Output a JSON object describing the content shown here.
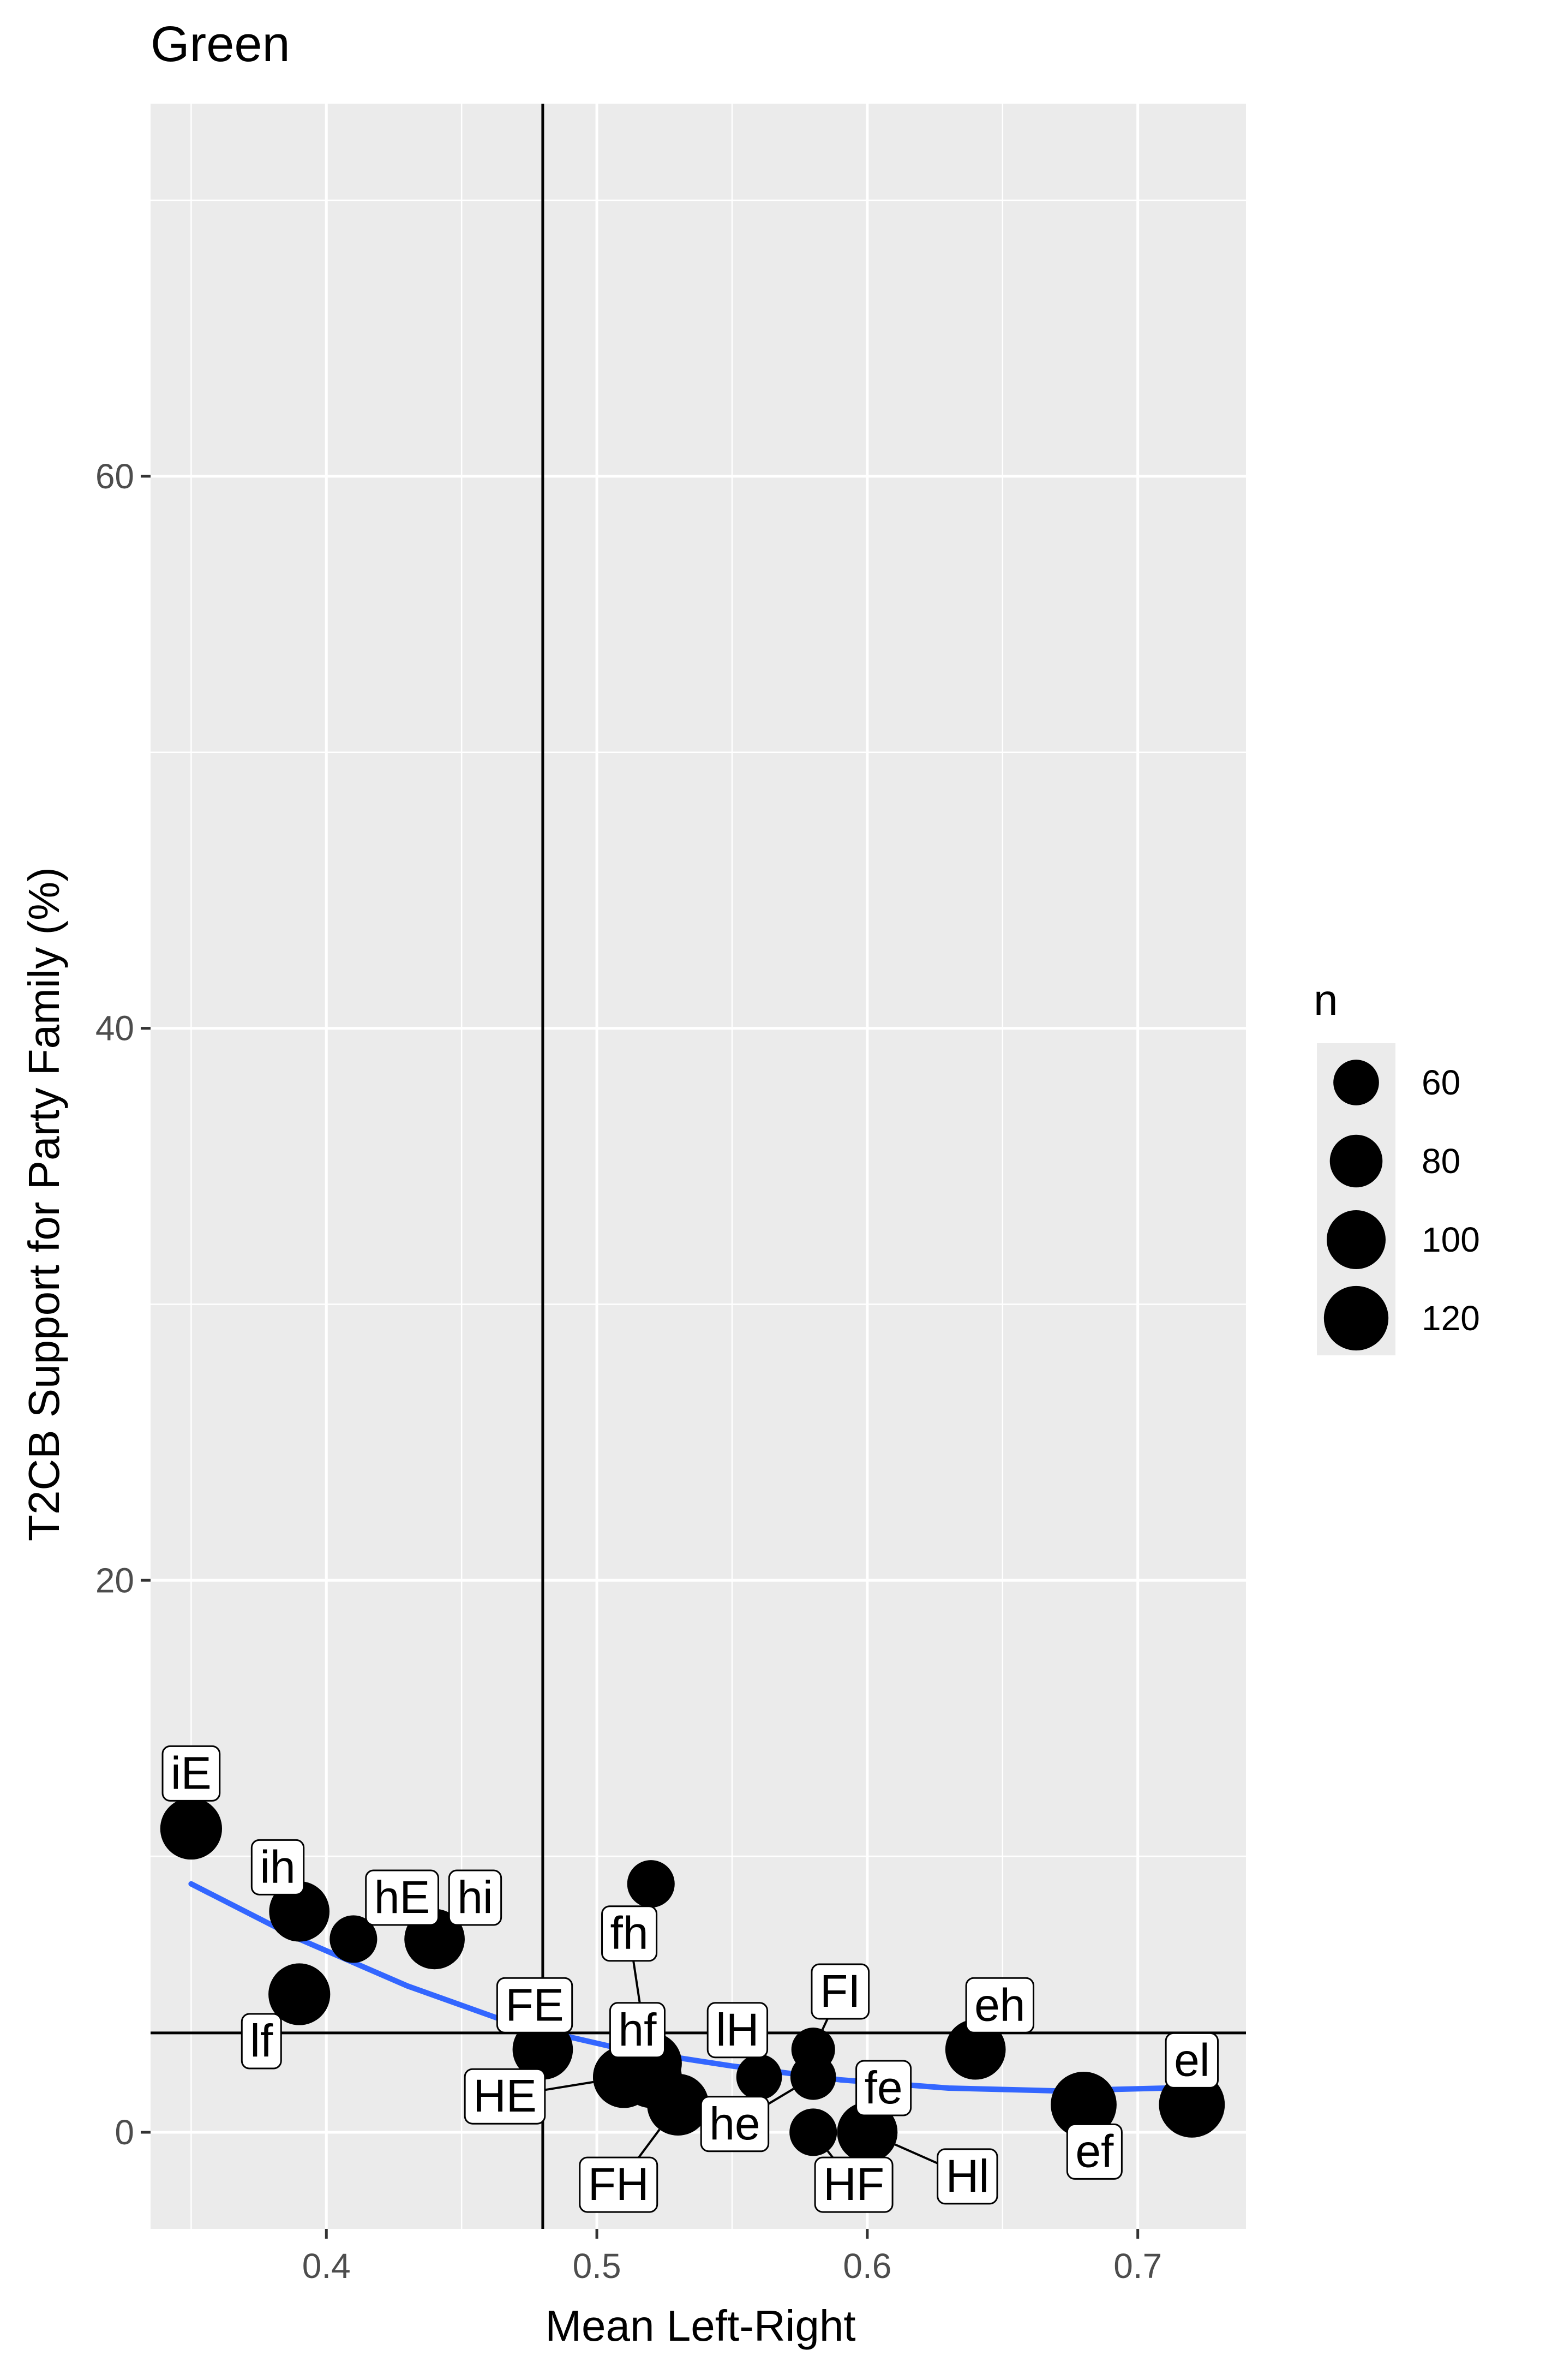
{
  "chart_data": {
    "type": "scatter",
    "title": "Green",
    "xlabel": "Mean Left-Right",
    "ylabel": "T2CB Support for Party Family (%)",
    "xlim": [
      0.335,
      0.74
    ],
    "ylim": [
      -3.5,
      73.5
    ],
    "x_ticks": [
      {
        "value": 0.4,
        "label": "0.4"
      },
      {
        "value": 0.5,
        "label": "0.5"
      },
      {
        "value": 0.6,
        "label": "0.6"
      },
      {
        "value": 0.7,
        "label": "0.7"
      }
    ],
    "y_ticks": [
      {
        "value": 0,
        "label": "0"
      },
      {
        "value": 20,
        "label": "20"
      },
      {
        "value": 40,
        "label": "40"
      },
      {
        "value": 60,
        "label": "60"
      }
    ],
    "grid": true,
    "vline": 0.48,
    "hline": 3.6,
    "points": [
      {
        "x": 0.35,
        "y": 11.0,
        "n": 110,
        "label": "iE",
        "lx": 0.35,
        "ly": 13.0
      },
      {
        "x": 0.39,
        "y": 8.0,
        "n": 105,
        "label": "ih",
        "lx": 0.382,
        "ly": 9.6
      },
      {
        "x": 0.41,
        "y": 7.0,
        "n": 65,
        "label": "hE",
        "lx": 0.428,
        "ly": 8.5
      },
      {
        "x": 0.44,
        "y": 7.0,
        "n": 105,
        "label": "hi",
        "lx": 0.455,
        "ly": 8.5
      },
      {
        "x": 0.39,
        "y": 5.0,
        "n": 110,
        "label": "lf",
        "lx": 0.376,
        "ly": 3.3
      },
      {
        "x": 0.52,
        "y": 9.0,
        "n": 65,
        "label": "",
        "lx": null,
        "ly": null
      },
      {
        "x": 0.48,
        "y": 3.0,
        "n": 105,
        "label": "FE",
        "lx": 0.477,
        "ly": 4.6
      },
      {
        "x": 0.51,
        "y": 2.0,
        "n": 110,
        "label": "",
        "lx": null,
        "ly": null
      },
      {
        "x": 0.52,
        "y": 2.0,
        "n": 110,
        "label": "fh",
        "lx": 0.512,
        "ly": 7.2
      },
      {
        "x": 0.52,
        "y": 2.5,
        "n": 110,
        "label": "hf",
        "lx": 0.515,
        "ly": 3.7
      },
      {
        "x": 0.51,
        "y": 2.0,
        "n": 110,
        "label": "HE",
        "lx": 0.466,
        "ly": 1.3
      },
      {
        "x": 0.53,
        "y": 1.0,
        "n": 110,
        "label": "FH",
        "lx": 0.508,
        "ly": -1.9
      },
      {
        "x": 0.56,
        "y": 2.0,
        "n": 60,
        "label": "lH",
        "lx": 0.552,
        "ly": 3.7
      },
      {
        "x": 0.58,
        "y": 2.0,
        "n": 60,
        "label": "he",
        "lx": 0.551,
        "ly": 0.3
      },
      {
        "x": 0.58,
        "y": 3.0,
        "n": 55,
        "label": "FI",
        "lx": 0.59,
        "ly": 5.1
      },
      {
        "x": 0.58,
        "y": 0.0,
        "n": 65,
        "label": "HF",
        "lx": 0.595,
        "ly": -1.9
      },
      {
        "x": 0.6,
        "y": 0.0,
        "n": 105,
        "label": "fe",
        "lx": 0.606,
        "ly": 1.6
      },
      {
        "x": 0.6,
        "y": 0.0,
        "n": 105,
        "label": "Hl",
        "lx": 0.637,
        "ly": -1.6
      },
      {
        "x": 0.64,
        "y": 3.0,
        "n": 105,
        "label": "eh",
        "lx": 0.649,
        "ly": 4.6
      },
      {
        "x": 0.68,
        "y": 1.0,
        "n": 125,
        "label": "ef",
        "lx": 0.684,
        "ly": -0.7
      },
      {
        "x": 0.72,
        "y": 1.0,
        "n": 125,
        "label": "el",
        "lx": 0.72,
        "ly": 2.6
      }
    ],
    "smooth_line": {
      "x": [
        0.35,
        0.39,
        0.43,
        0.47,
        0.51,
        0.55,
        0.59,
        0.63,
        0.67,
        0.71,
        0.72
      ],
      "y": [
        9.0,
        7.0,
        5.3,
        3.9,
        3.0,
        2.4,
        1.9,
        1.6,
        1.5,
        1.6,
        1.7
      ],
      "color": "#3366ff"
    },
    "legend": {
      "title": "n",
      "placement": "right",
      "entries": [
        {
          "value": 60,
          "label": "60"
        },
        {
          "value": 80,
          "label": "80"
        },
        {
          "value": 100,
          "label": "100"
        },
        {
          "value": 120,
          "label": "120"
        }
      ]
    },
    "colors": {
      "panel": "#ebebeb",
      "grid": "#ffffff",
      "points": "#000000",
      "smooth": "#3366ff",
      "axis_text": "#4d4d4d"
    }
  }
}
